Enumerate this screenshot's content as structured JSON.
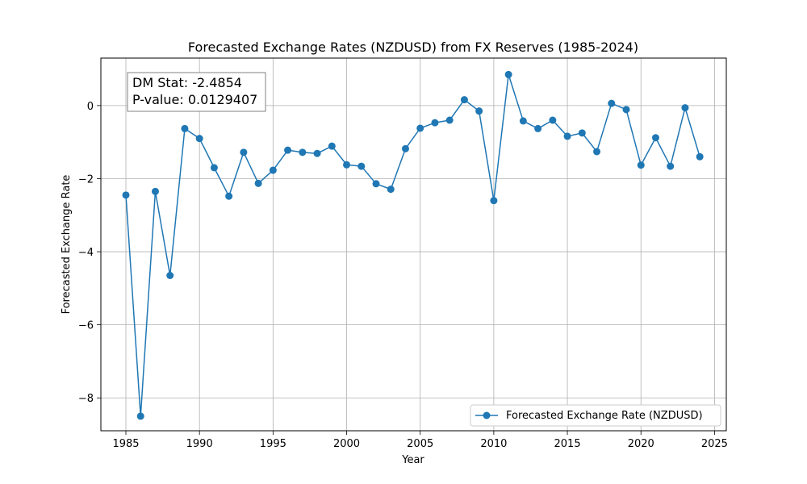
{
  "chart_data": {
    "type": "line",
    "title": "Forecasted Exchange Rates (NZDUSD) from FX Reserves (1985-2024)",
    "xlabel": "Year",
    "ylabel": "Forecasted Exchange Rate",
    "xlim": [
      1983.3,
      2025.8
    ],
    "ylim": [
      -8.9,
      1.3
    ],
    "xticks": [
      1985,
      1990,
      1995,
      2000,
      2005,
      2010,
      2015,
      2020,
      2025
    ],
    "yticks": [
      0,
      -2,
      -4,
      -6,
      -8
    ],
    "ytick_labels": [
      "0",
      "−2",
      "−4",
      "−6",
      "−8"
    ],
    "grid": true,
    "legend_position": "lower-right",
    "series": [
      {
        "name": "Forecasted Exchange Rate (NZDUSD)",
        "color": "#1f77b4",
        "marker": "circle",
        "x": [
          1985,
          1986,
          1987,
          1988,
          1989,
          1990,
          1991,
          1992,
          1993,
          1994,
          1995,
          1996,
          1997,
          1998,
          1999,
          2000,
          2001,
          2002,
          2003,
          2004,
          2005,
          2006,
          2007,
          2008,
          2009,
          2010,
          2011,
          2012,
          2013,
          2014,
          2015,
          2016,
          2017,
          2018,
          2019,
          2020,
          2021,
          2022,
          2023,
          2024
        ],
        "y": [
          -2.45,
          -8.5,
          -2.35,
          -4.65,
          -0.63,
          -0.9,
          -1.7,
          -2.48,
          -1.28,
          -2.13,
          -1.77,
          -1.22,
          -1.28,
          -1.31,
          -1.11,
          -1.62,
          -1.66,
          -2.14,
          -2.29,
          -1.18,
          -0.62,
          -0.47,
          -0.4,
          0.16,
          -0.15,
          -2.6,
          0.85,
          -0.42,
          -0.63,
          -0.4,
          -0.84,
          -0.75,
          -1.26,
          0.06,
          -0.11,
          -1.63,
          -0.88,
          -1.66,
          -0.06,
          -1.4
        ]
      }
    ],
    "annotation": {
      "line1": "DM Stat: -2.4854",
      "line2": "P-value: 0.0129407"
    }
  }
}
